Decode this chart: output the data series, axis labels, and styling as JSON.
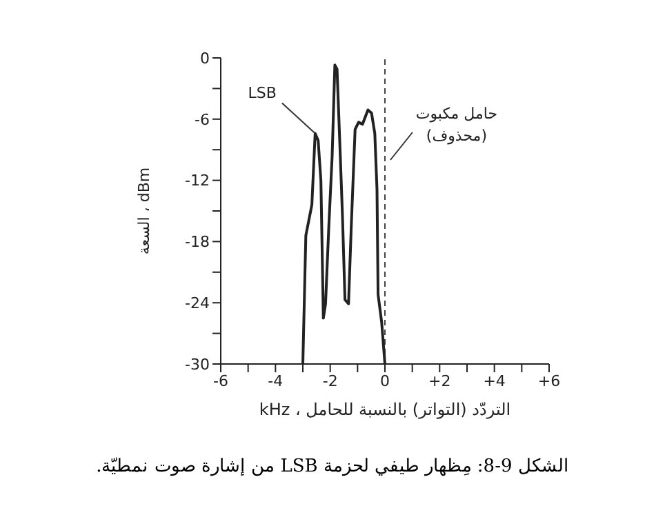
{
  "chart_data": {
    "type": "line",
    "xlabel": "التردّد (التواتر) بالنسبة للحامل ، kHz",
    "ylabel": "السعة ، dBm",
    "x": [
      -3.0,
      -2.89,
      -2.67,
      -2.55,
      -2.44,
      -2.34,
      -2.25,
      -2.17,
      -2.05,
      -1.93,
      -1.83,
      -1.75,
      -1.63,
      -1.55,
      -1.46,
      -1.33,
      -1.23,
      -1.09,
      -0.96,
      -0.82,
      -0.62,
      -0.49,
      -0.37,
      -0.29,
      -0.25,
      -0.12,
      0
    ],
    "series": [
      {
        "color": "#222222",
        "values": [
          -30,
          -17.4,
          -14.4,
          -7.4,
          -8.1,
          -12,
          -25.5,
          -24.1,
          -16.5,
          -9.7,
          -0.7,
          -1.1,
          -9.7,
          -15.6,
          -23.7,
          -24.1,
          -16.5,
          -7,
          -6.3,
          -6.5,
          -5.1,
          -5.4,
          -7.4,
          -12.9,
          -23.2,
          -25.9,
          -30
        ]
      }
    ],
    "xlim": [
      -6,
      6
    ],
    "xticks": [
      -6,
      {
        "value": -5,
        "label": null
      },
      -4,
      {
        "value": -3,
        "label": null
      },
      -2,
      {
        "value": -1,
        "label": null
      },
      0,
      {
        "value": 1,
        "label": null
      },
      {
        "value": 2,
        "label": "+2"
      },
      {
        "value": 3,
        "label": null
      },
      {
        "value": 4,
        "label": "+4"
      },
      {
        "value": 5,
        "label": null
      },
      {
        "value": 6,
        "label": "+6"
      }
    ],
    "ylim": [
      -30,
      0
    ],
    "yticks": [
      -30,
      {
        "value": -27,
        "label": null
      },
      -24,
      {
        "value": -21,
        "label": null
      },
      -18,
      {
        "value": -15,
        "label": null
      },
      -12,
      {
        "value": -9,
        "label": null
      },
      -6,
      {
        "value": -3,
        "label": null
      },
      0
    ],
    "ref_lines": [
      {
        "axis": "x",
        "value": 0,
        "line_style": "dashed",
        "color": "#444444"
      }
    ],
    "annotations": [
      {
        "text": "LSB",
        "x": -2.55,
        "y": -7.4
      },
      {
        "text": "حامل مكبوت\n(محذوف)",
        "x": 0.2,
        "y": -10
      },
      "الشكل 9-8: مِظهار طيفي لحزمة LSB من إشارة صوت نمطيّة."
    ],
    "grid": false,
    "legend": false,
    "marker": "none",
    "line_style": "solid"
  }
}
